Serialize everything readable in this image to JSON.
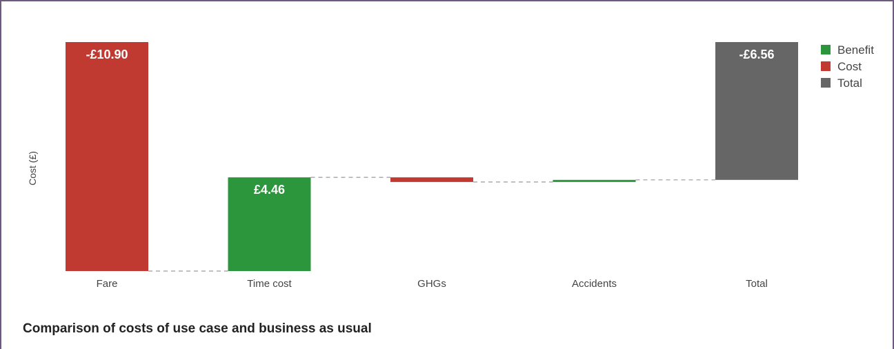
{
  "caption": "Comparison of costs of use case and business as usual",
  "chart_data": {
    "type": "bar",
    "subtype": "waterfall",
    "ylabel": "Cost (£)",
    "xlabel": "",
    "categories": [
      "Fare",
      "Time cost",
      "GHGs",
      "Accidents",
      "Total"
    ],
    "steps": [
      {
        "category": "Fare",
        "value": -10.9,
        "kind": "Cost",
        "label": "-£10.90"
      },
      {
        "category": "Time cost",
        "value": 4.46,
        "kind": "Benefit",
        "label": "£4.46"
      },
      {
        "category": "GHGs",
        "value": -0.22,
        "kind": "Cost",
        "label": ""
      },
      {
        "category": "Accidents",
        "value": 0.1,
        "kind": "Benefit",
        "label": ""
      },
      {
        "category": "Total",
        "value": -6.56,
        "kind": "Total",
        "label": "-£6.56"
      }
    ],
    "ylim": [
      -10.9,
      0
    ],
    "grid": false,
    "connectors": "dashed",
    "legend": {
      "position": "top-right",
      "entries": [
        {
          "name": "Benefit",
          "color": "#2b963c"
        },
        {
          "name": "Cost",
          "color": "#c13a32"
        },
        {
          "name": "Total",
          "color": "#666666"
        }
      ]
    }
  }
}
